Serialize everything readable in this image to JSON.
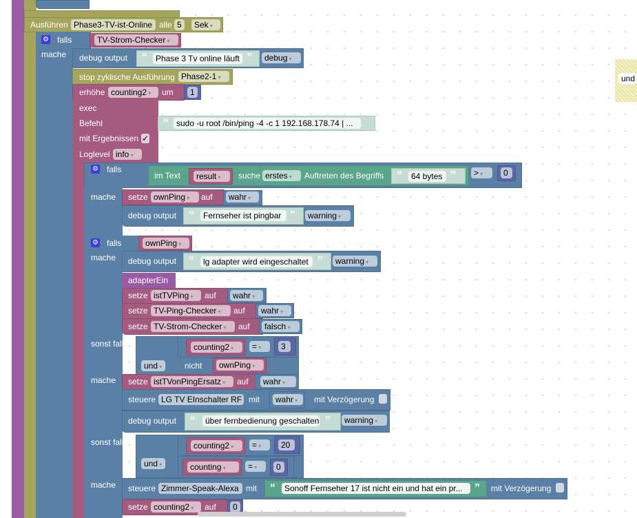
{
  "event": {
    "run": "Ausführen",
    "name": "Phase3-TV-ist-Online",
    "every": "alle",
    "interval": "5",
    "unit": "Sek"
  },
  "if1": {
    "falls": "falls",
    "mache": "mache",
    "cond_var": "TV-Strom-Checker"
  },
  "debug1": {
    "label": "debug output",
    "text": "Phase 3 Tv online läuft",
    "level": "debug"
  },
  "stop": {
    "label": "stop zyklische Ausführung",
    "target": "Phase2-1"
  },
  "incr": {
    "label": "erhöhe",
    "var": "counting2",
    "by": "um",
    "value": "1"
  },
  "exec": {
    "label": "exec",
    "cmd_label": "Befehl",
    "cmd": "sudo -u root /bin/ping -4 -c 1 192.168.178.74 | ...",
    "results_label": "mit Ergebnissen",
    "results_checked": true,
    "checkmark": "✓",
    "loglevel_label": "Loglevel",
    "loglevel": "info"
  },
  "if2": {
    "falls": "falls",
    "mache": "mache",
    "in_text": "im Text",
    "var": "result",
    "search": "suche",
    "mode": "erstes",
    "occ": "Auftreten des Begriffs",
    "term": "64 bytes",
    "op": ">",
    "value": "0"
  },
  "set_ownping": {
    "label": "setze",
    "var": "ownPing",
    "to": "auf",
    "value": "wahr"
  },
  "debug2": {
    "label": "debug output",
    "text": "Fernseher ist pingbar",
    "level": "warning"
  },
  "if3": {
    "falls": "falls",
    "mache": "mache",
    "cond_var": "ownPing",
    "elseif": "sonst falls"
  },
  "debug3": {
    "label": "debug output",
    "text": "lg adapter wird eingeschaltet",
    "level": "warning"
  },
  "adapter": {
    "label": "adapterEin"
  },
  "set1": {
    "label": "setze",
    "var": "istTVPing",
    "to": "auf",
    "value": "wahr"
  },
  "set2": {
    "label": "setze",
    "var": "TV-Ping-Checker",
    "to": "auf",
    "value": "wahr"
  },
  "set3": {
    "label": "setze",
    "var": "TV-Strom-Checker",
    "to": "auf",
    "value": "falsch"
  },
  "elif1": {
    "and": "und",
    "var": "counting2",
    "op": "=",
    "value": "3",
    "not": "nicht",
    "not_var": "ownPing",
    "mache": "mache"
  },
  "set4": {
    "label": "setze",
    "var": "istTVonPingErsatz",
    "to": "auf",
    "value": "wahr"
  },
  "ctrl1": {
    "label": "steuere",
    "target": "LG TV EInschalter RF",
    "with": "mit",
    "value": "wahr",
    "delay": "mit Verzögerung"
  },
  "debug4": {
    "label": "debug output",
    "text": "über fernbedienung geschalten",
    "level": "warning"
  },
  "elif2": {
    "and": "und",
    "var": "counting2",
    "op": "=",
    "value": "20",
    "var2": "counting",
    "op2": "=",
    "value2": "0",
    "mache": "mache"
  },
  "ctrl2": {
    "label": "steuere",
    "target": "Zimmer-Speak-Alexa",
    "with": "mit",
    "text": "Sonoff Fernseher 17 ist nicht ein und hat ein pr...",
    "delay": "mit Verzögerung"
  },
  "set5": {
    "label": "setze",
    "var": "counting2",
    "to": "auf",
    "value": "0"
  },
  "side_block": {
    "label": "und"
  },
  "quotes": {
    "open": "“",
    "close": "”"
  }
}
